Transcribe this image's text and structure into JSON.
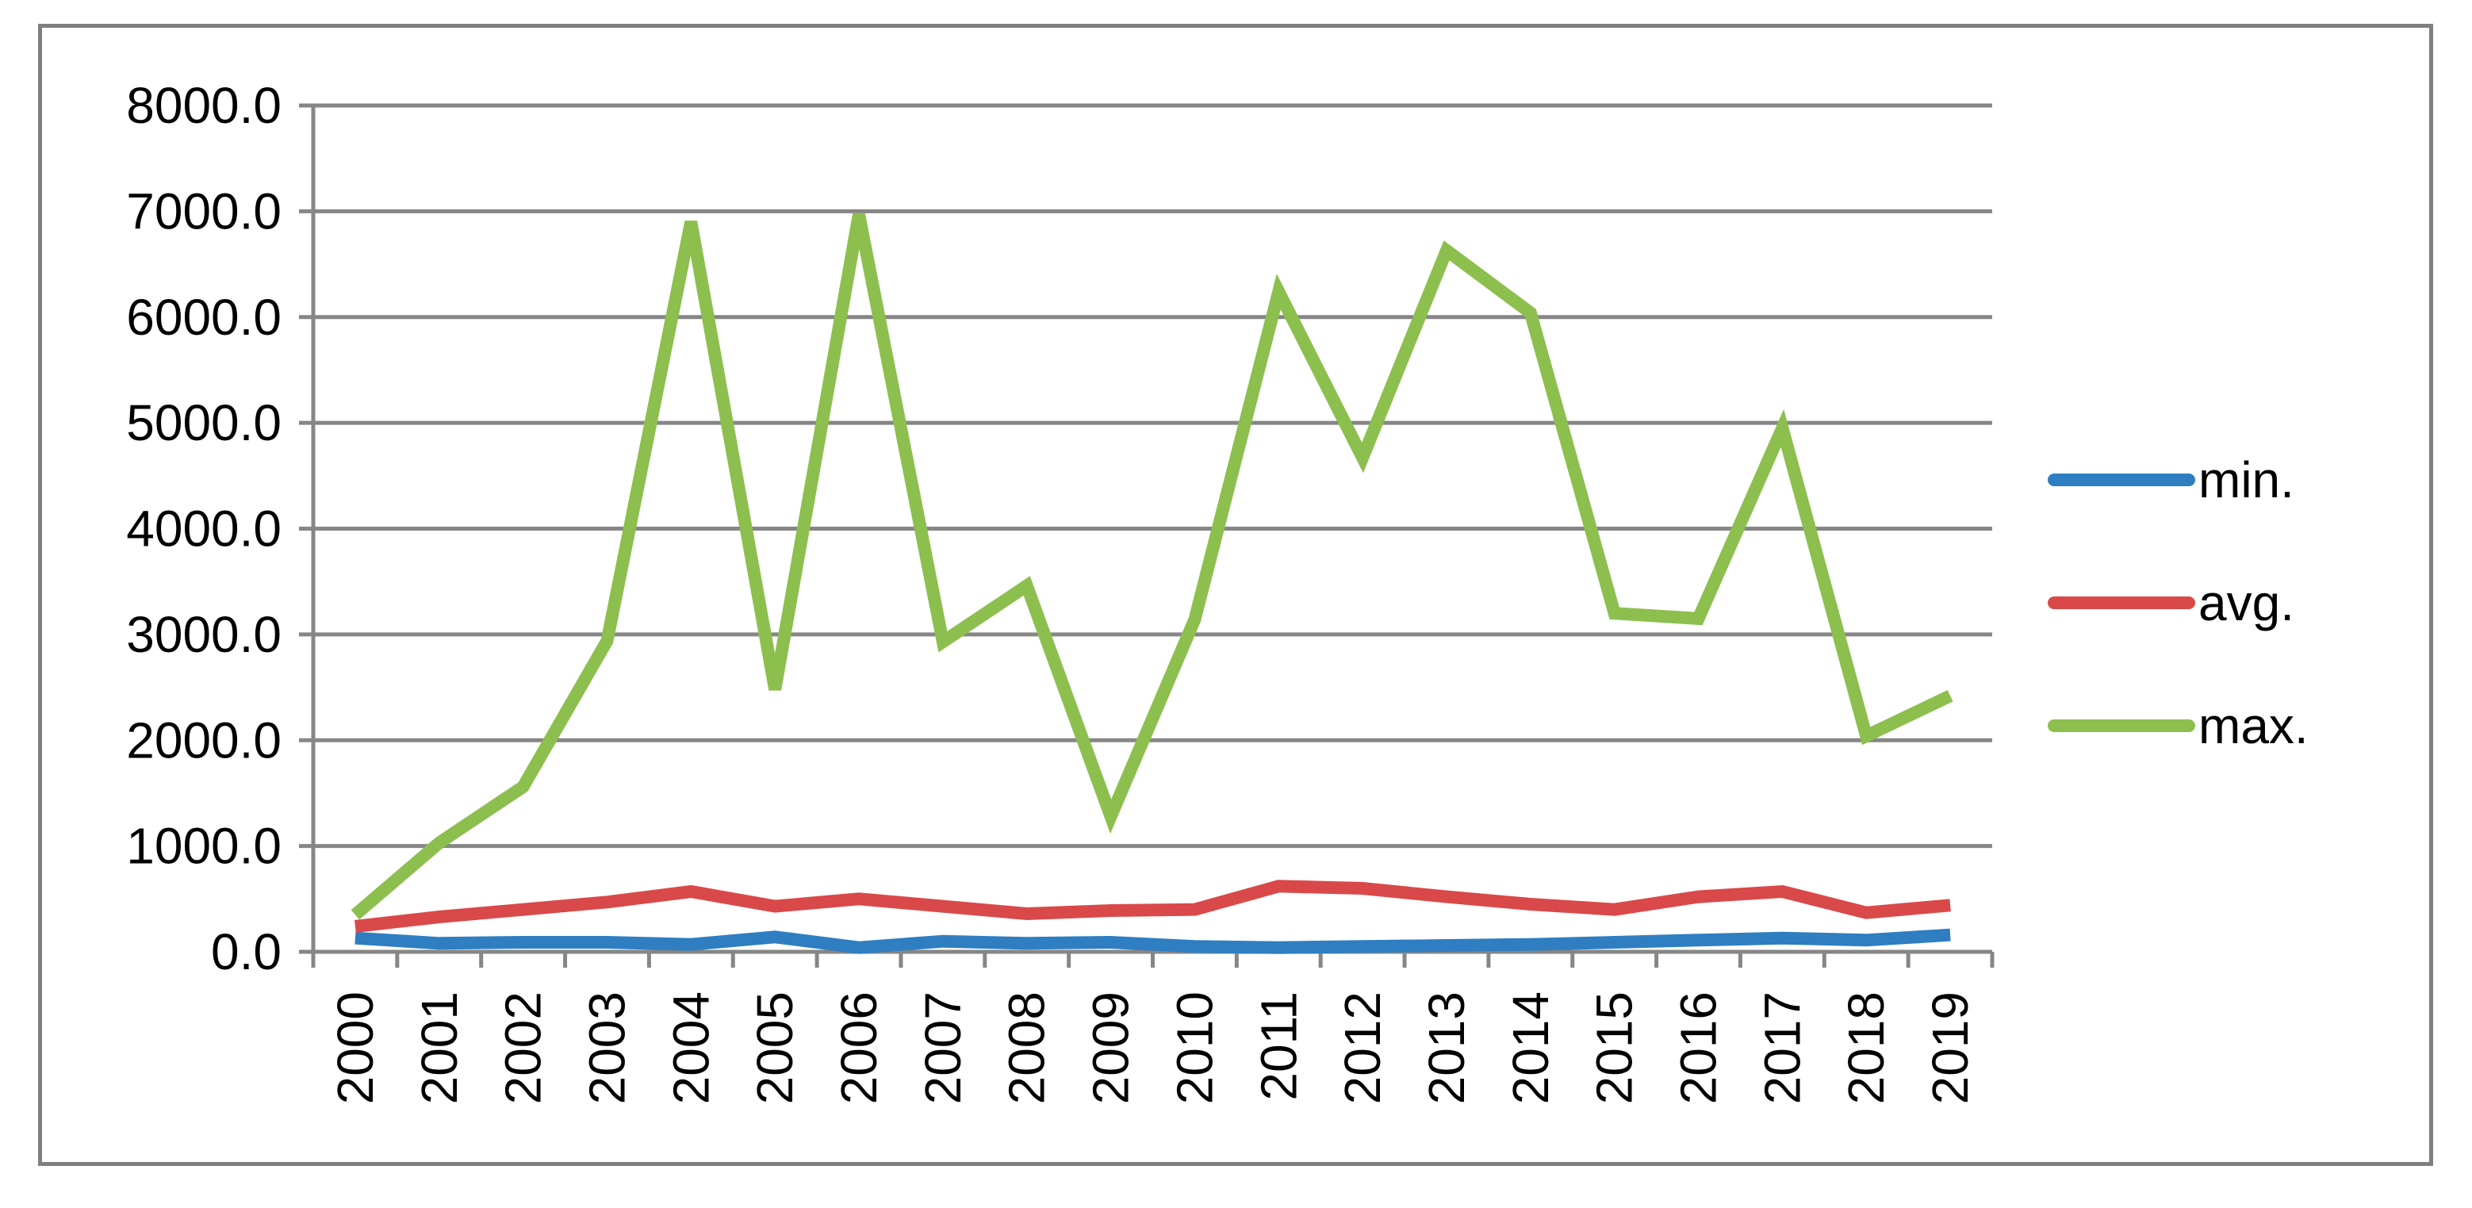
{
  "chart_data": {
    "type": "line",
    "title": "",
    "xlabel": "",
    "ylabel": "",
    "categories": [
      "2000",
      "2001",
      "2002",
      "2003",
      "2004",
      "2005",
      "2006",
      "2007",
      "2008",
      "2009",
      "2010",
      "2011",
      "2012",
      "2013",
      "2014",
      "2015",
      "2016",
      "2017",
      "2018",
      "2019"
    ],
    "ylim": [
      0,
      8000
    ],
    "y_ticks": [
      0,
      1000,
      2000,
      3000,
      4000,
      5000,
      6000,
      7000,
      8000
    ],
    "y_tick_labels": [
      "0.0",
      "1000.0",
      "2000.0",
      "3000.0",
      "4000.0",
      "5000.0",
      "6000.0",
      "7000.0",
      "8000.0"
    ],
    "grid": "horizontal",
    "legend_position": "right",
    "series": [
      {
        "name": "min.",
        "color": "#2e7ec1",
        "values": [
          130,
          80,
          90,
          90,
          70,
          140,
          40,
          100,
          80,
          90,
          50,
          40,
          50,
          60,
          70,
          90,
          110,
          130,
          110,
          160
        ]
      },
      {
        "name": "avg.",
        "color": "#d9494a",
        "values": [
          240,
          330,
          400,
          470,
          570,
          430,
          500,
          430,
          360,
          390,
          400,
          620,
          600,
          520,
          450,
          400,
          520,
          570,
          370,
          440
        ]
      },
      {
        "name": "max.",
        "color": "#8cbf4e",
        "values": [
          350,
          1030,
          1560,
          2940,
          6900,
          2480,
          6970,
          2930,
          3460,
          1280,
          3140,
          6240,
          4670,
          6630,
          6040,
          3200,
          3150,
          4950,
          2040,
          2420
        ]
      }
    ]
  }
}
